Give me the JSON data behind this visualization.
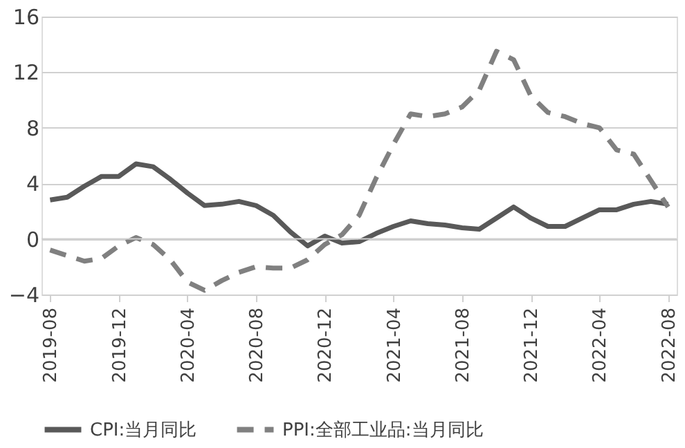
{
  "chart_data": {
    "type": "line",
    "categories": [
      "2019-08",
      null,
      null,
      null,
      "2019-12",
      null,
      null,
      null,
      "2020-04",
      null,
      null,
      null,
      "2020-08",
      null,
      null,
      null,
      "2020-12",
      null,
      null,
      null,
      "2021-04",
      null,
      null,
      null,
      "2021-08",
      null,
      null,
      null,
      "2021-12",
      null,
      null,
      null,
      "2022-04",
      null,
      null,
      null,
      "2022-08"
    ],
    "series": [
      {
        "name": "CPI:当月同比",
        "color": "#595959",
        "line_style": "solid",
        "values": [
          2.8,
          3.0,
          3.8,
          4.5,
          4.5,
          5.4,
          5.2,
          4.3,
          3.3,
          2.4,
          2.5,
          2.7,
          2.4,
          1.7,
          0.5,
          -0.5,
          0.2,
          -0.3,
          -0.2,
          0.4,
          0.9,
          1.3,
          1.1,
          1.0,
          0.8,
          0.7,
          1.5,
          2.3,
          1.5,
          0.9,
          0.9,
          1.5,
          2.1,
          2.1,
          2.5,
          2.7,
          2.5
        ]
      },
      {
        "name": "PPI:全部工业品:当月同比",
        "color": "#808080",
        "line_style": "dashed",
        "values": [
          -0.8,
          -1.2,
          -1.6,
          -1.4,
          -0.5,
          0.1,
          -0.4,
          -1.5,
          -3.1,
          -3.7,
          -3.0,
          -2.4,
          -2.0,
          -2.1,
          -2.1,
          -1.5,
          -0.4,
          0.3,
          1.7,
          4.4,
          6.8,
          9.0,
          8.8,
          9.0,
          9.5,
          10.7,
          13.5,
          12.9,
          10.3,
          9.1,
          8.8,
          8.3,
          8.0,
          6.4,
          6.1,
          4.2,
          2.3
        ]
      }
    ],
    "ylim": [
      -4,
      16
    ],
    "yticks": [
      -4,
      0,
      4,
      8,
      12,
      16
    ],
    "grid": "y",
    "legend": "bottom",
    "marker": "none"
  }
}
